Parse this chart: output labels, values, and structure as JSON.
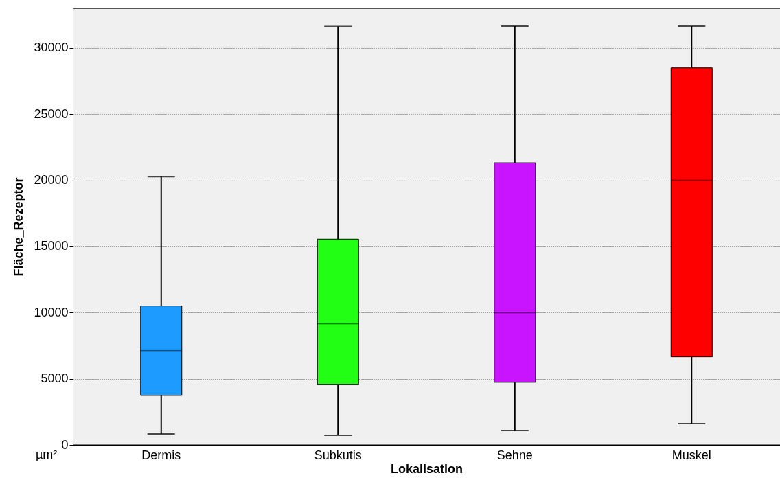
{
  "chart_data": {
    "type": "box",
    "xlabel": "Lokalisation",
    "ylabel": "Fläche_Rezeptor",
    "categories": [
      "Dermis",
      "Subkutis",
      "Sehne",
      "Muskel"
    ],
    "boxes": [
      {
        "low": 830,
        "q1": 3740,
        "median": 7120,
        "q3": 10500,
        "high": 20280
      },
      {
        "low": 730,
        "q1": 4580,
        "median": 9150,
        "q3": 15550,
        "high": 31620
      },
      {
        "low": 1090,
        "q1": 4730,
        "median": 9980,
        "q3": 21320,
        "high": 31650
      },
      {
        "low": 1610,
        "q1": 6660,
        "median": 20020,
        "q3": 28500,
        "high": 31650
      }
    ],
    "colors": [
      "#1e9bff",
      "#22ff14",
      "#c814ff",
      "#ff0000"
    ],
    "ylim": [
      0,
      33000
    ],
    "yticks": [
      0,
      5000,
      10000,
      15000,
      20000,
      25000,
      30000
    ],
    "grid": "y",
    "annotations": [
      "µm²"
    ]
  }
}
